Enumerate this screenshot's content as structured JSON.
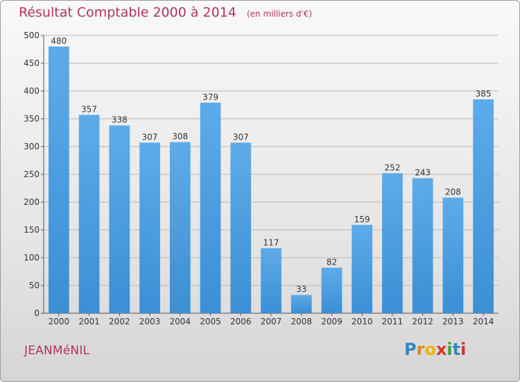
{
  "header": {
    "title": "Résultat Comptable 2000 à 2014",
    "unit": "(en milliers d'€)"
  },
  "footer": {
    "place": "JEANMéNIL"
  },
  "logo": {
    "letters": [
      "P",
      "r",
      "o",
      "x",
      "i",
      "t",
      "i"
    ],
    "colors": [
      "#2f86c8",
      "#e6841f",
      "#f0b400",
      "#d0342c",
      "#3aa23a",
      "#2f86c8",
      "#d0342c"
    ]
  },
  "colors": {
    "bar": "#3b8fd5",
    "bar_light": "#5eabe8",
    "title": "#b0345e"
  },
  "chart_data": {
    "type": "bar",
    "categories": [
      "2000",
      "2001",
      "2002",
      "2003",
      "2004",
      "2005",
      "2006",
      "2007",
      "2008",
      "2009",
      "2010",
      "2011",
      "2012",
      "2013",
      "2014"
    ],
    "values": [
      480,
      357,
      338,
      307,
      308,
      379,
      307,
      117,
      33,
      82,
      159,
      252,
      243,
      208,
      385
    ],
    "data_labels": [
      "480",
      "357",
      "338",
      "307",
      "308",
      "379",
      "307",
      "117",
      "33",
      "82",
      "159",
      "252",
      "243",
      "208",
      "385"
    ],
    "y_ticks": [
      "0",
      "50",
      "100",
      "150",
      "200",
      "250",
      "300",
      "350",
      "400",
      "450",
      "500"
    ],
    "ylim": [
      0,
      500
    ],
    "grid": true,
    "title": "Résultat Comptable 2000 à 2014",
    "xlabel": "",
    "ylabel": ""
  }
}
